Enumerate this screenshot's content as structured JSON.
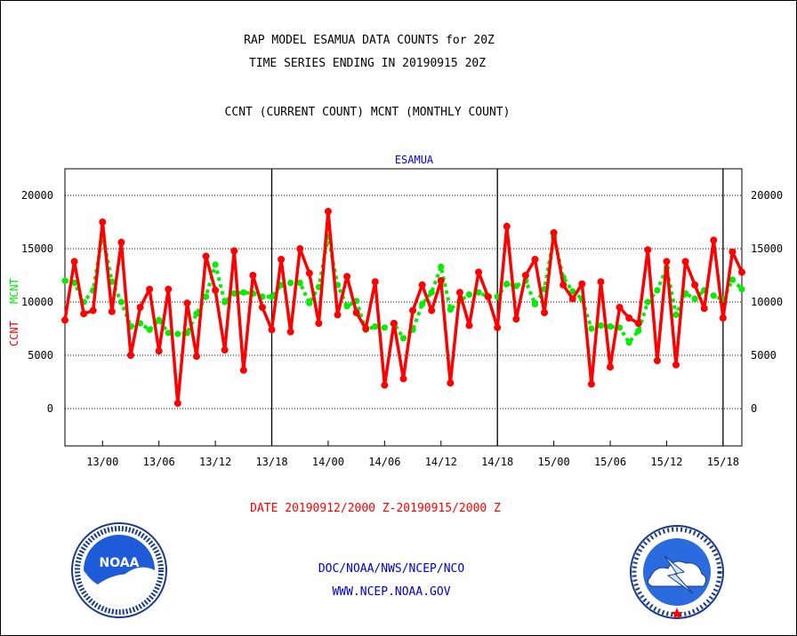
{
  "title_line1": "RAP MODEL ESAMUA DATA COUNTS for 20Z",
  "title_line2": "TIME SERIES ENDING IN 20190915 20Z",
  "subtitle": "CCNT (CURRENT COUNT) MCNT (MONTHLY COUNT)",
  "date_range": "DATE 20190912/2000 Z-20190915/2000 Z",
  "footer_line1": "DOC/NOAA/NWS/NCEP/NCO",
  "footer_line2": "WWW.NCEP.NOAA.GOV",
  "logos": {
    "left": "noaa-logo",
    "right": "nws-logo"
  },
  "colors": {
    "ccnt": "#ff0000",
    "mcnt": "#00ee00",
    "station": "#0000ee",
    "footer": "#0000cc"
  },
  "chart_data": {
    "type": "line",
    "title": "ESAMUA",
    "ylabel_ccnt": "CCNT",
    "ylabel_mcnt": "MCNT",
    "ylim": [
      -3500,
      22500
    ],
    "yticks": [
      0,
      5000,
      10000,
      15000,
      20000
    ],
    "x_tick_labels": [
      "13/00",
      "13/06",
      "13/12",
      "13/18",
      "14/00",
      "14/06",
      "14/12",
      "14/18",
      "15/00",
      "15/06",
      "15/12",
      "15/18"
    ],
    "x_tick_hours": [
      4,
      10,
      16,
      22,
      28,
      34,
      40,
      46,
      52,
      58,
      64,
      70
    ],
    "day_boundary_hours": [
      22,
      46,
      70
    ],
    "x_range_hours": [
      0,
      72
    ],
    "grid": "horizontal-dotted",
    "series": [
      {
        "name": "CCNT",
        "values": [
          8300,
          13800,
          8900,
          9200,
          17500,
          9100,
          15600,
          5000,
          9500,
          11200,
          5400,
          11200,
          500,
          9900,
          4900,
          14300,
          11100,
          5500,
          14800,
          3600,
          12500,
          9500,
          7400,
          14000,
          7200,
          15000,
          12700,
          8000,
          18500,
          8800,
          12400,
          9000,
          7500,
          11900,
          2200,
          8000,
          2800,
          9200,
          11600,
          9200,
          12000,
          2400,
          10900,
          7800,
          12800,
          10500,
          7600,
          17100,
          8400,
          12500,
          14000,
          9000,
          16500,
          11600,
          10300,
          11700,
          2300,
          11900,
          3900,
          9500,
          8500,
          8000,
          14900,
          4500,
          13800,
          4100,
          13800,
          11600,
          9400,
          15800,
          8500,
          14700,
          12800
        ]
      },
      {
        "name": "MCNT",
        "values": [
          12000,
          11800,
          10000,
          11100,
          16300,
          11900,
          10000,
          7700,
          8000,
          7400,
          8300,
          7100,
          7000,
          7100,
          8900,
          10500,
          13500,
          10000,
          10800,
          10900,
          10800,
          10500,
          10500,
          11600,
          11800,
          11800,
          9900,
          11400,
          16100,
          11600,
          9600,
          10100,
          7400,
          7700,
          7600,
          8000,
          6600,
          7400,
          9800,
          10900,
          13300,
          9300,
          10100,
          10700,
          10900,
          10500,
          10500,
          11700,
          11500,
          12000,
          9800,
          11200,
          16100,
          12300,
          11000,
          10300,
          7500,
          7800,
          7700,
          7600,
          6200,
          7300,
          10000,
          11100,
          13200,
          8800,
          10800,
          10300,
          11100,
          10600,
          10200,
          12100,
          11200
        ]
      }
    ]
  }
}
